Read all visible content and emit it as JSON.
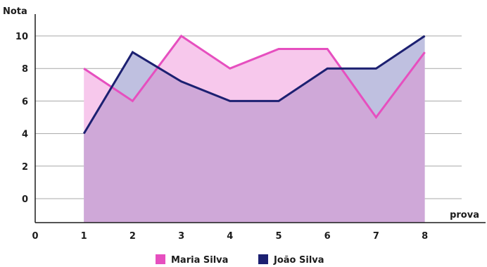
{
  "chart_data": {
    "type": "area",
    "ylabel": "Nota",
    "xlabel": "prova",
    "x_ticks": [
      "0",
      "1",
      "2",
      "3",
      "4",
      "5",
      "6",
      "7",
      "8"
    ],
    "y_ticks": [
      "0",
      "2",
      "4",
      "6",
      "8",
      "10"
    ],
    "x": [
      1,
      2,
      3,
      4,
      5,
      6,
      7,
      8
    ],
    "series": [
      {
        "name": "Maria Silva",
        "values": [
          8,
          6,
          10,
          8,
          9.2,
          9.2,
          5,
          9
        ],
        "color": "#e64fbf",
        "fill": "#f7c8ec"
      },
      {
        "name": "João Silva",
        "values": [
          4,
          9,
          7.2,
          6,
          6,
          8,
          8,
          10
        ],
        "color": "#1c2071",
        "fill": "#bfc0e0"
      }
    ],
    "overlap_fill": "#cfa8d8",
    "grid": true,
    "legend_position": "bottom-center"
  }
}
